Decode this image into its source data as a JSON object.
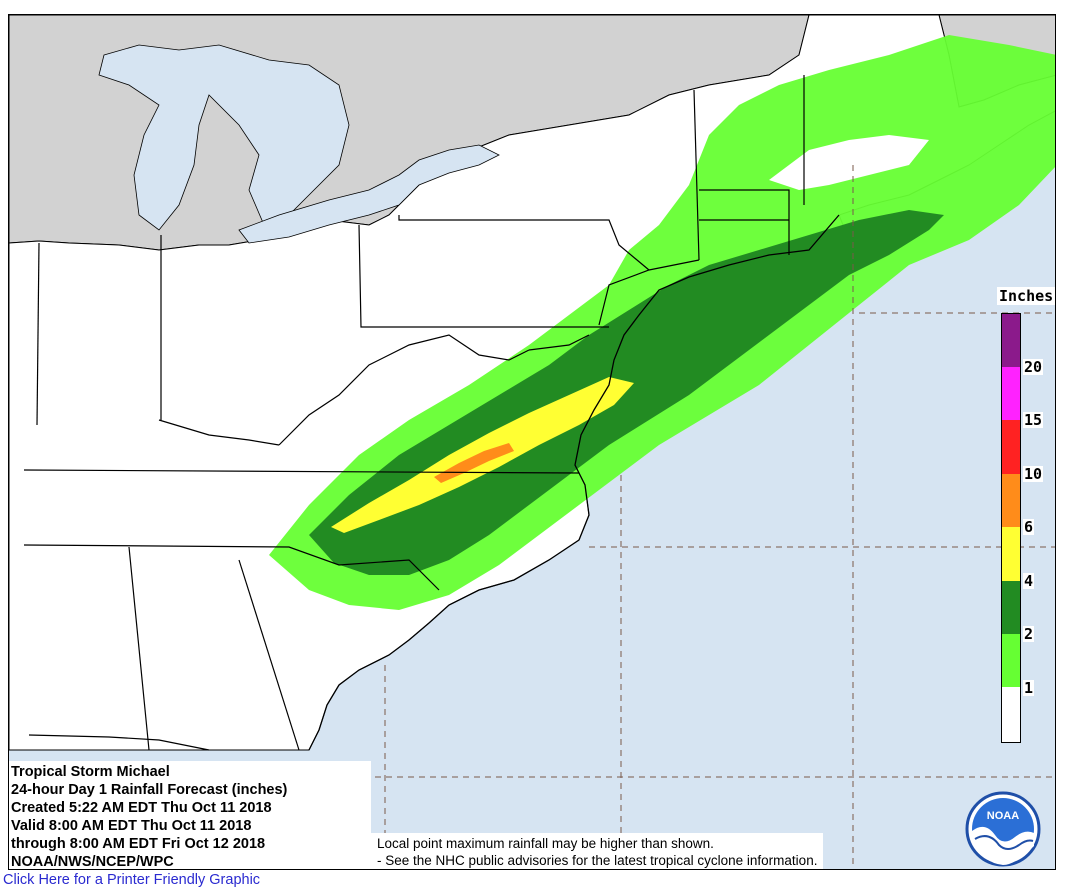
{
  "title_lines": [
    "Tropical Storm Michael",
    "24-hour Day 1 Rainfall Forecast (inches)",
    "Created 5:22 AM EDT Thu Oct 11 2018",
    "Valid 8:00 AM EDT Thu Oct 11 2018",
    "through 8:00 AM EDT Fri Oct 12 2018",
    "NOAA/NWS/NCEP/WPC"
  ],
  "disclaimer": {
    "line1": "Local point maximum rainfall may be higher than shown.",
    "line2": "- See the NHC public advisories for the latest tropical cyclone information."
  },
  "legend": {
    "title": "Inches",
    "ticks": [
      "1",
      "2",
      "4",
      "6",
      "10",
      "15",
      "20"
    ],
    "colors": {
      "lt1": "#ffffff",
      "1to2": "#66ff33",
      "2to4": "#228b22",
      "4to6": "#ffff33",
      "6to10": "#ff8c1a",
      "10to15": "#ff2222",
      "15to20": "#ff22ff",
      "gt20": "#8b1a8b"
    }
  },
  "map_colors": {
    "ocean": "#d6e4f2",
    "land_us": "#ffffff",
    "land_canada": "#d2d2d2",
    "lakes": "#d6e4f2",
    "border": "#000000",
    "grid": "#7a5a4a"
  },
  "logo": {
    "text": "NOAA",
    "icon": "noaa-logo-icon"
  },
  "printer_link": "Click Here for a Printer Friendly Graphic"
}
